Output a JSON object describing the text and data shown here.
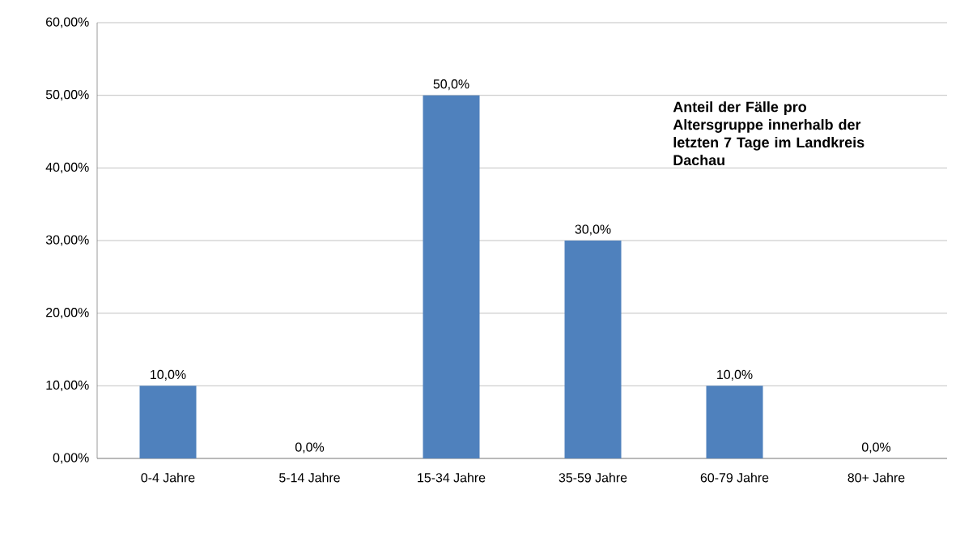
{
  "chart_data": {
    "type": "bar",
    "title": "**Anteil der Fälle pro Altersgruppe innerhalb der letzten 7 Tage im Landkreis Dachau**",
    "categories": [
      "0-4 Jahre",
      "5-14 Jahre",
      "15-34 Jahre",
      "35-59 Jahre",
      "60-79 Jahre",
      "80+ Jahre"
    ],
    "values": [
      10,
      0,
      50,
      30,
      10,
      0
    ],
    "value_labels": [
      "10,0%",
      "0,0%",
      "50,0%",
      "30,0%",
      "10,0%",
      "0,0%"
    ],
    "color": "#4f81bd",
    "ylim": [
      0,
      60
    ],
    "yticks": [
      {
        "value": 0,
        "label": "0,00%"
      },
      {
        "value": 10,
        "label": "10,00%"
      },
      {
        "value": 20,
        "label": "20,00%"
      },
      {
        "value": 30,
        "label": "30,00%"
      },
      {
        "value": 40,
        "label": "40,00%"
      },
      {
        "value": 50,
        "label": "50,00%"
      },
      {
        "value": 60,
        "label": "60,00%"
      }
    ],
    "grid": "y"
  }
}
